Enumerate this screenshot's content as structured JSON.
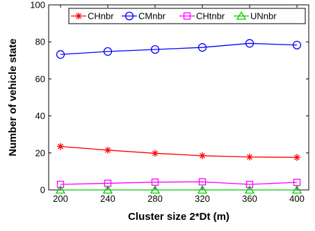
{
  "chart_data": {
    "type": "line",
    "title": "",
    "xlabel": "Cluster size 2*Dt (m)",
    "ylabel": "Number of vehicle state",
    "x": [
      200,
      240,
      280,
      320,
      360,
      400
    ],
    "xlim": [
      190,
      410
    ],
    "ylim": [
      0,
      100
    ],
    "xticks": [
      "200",
      "240",
      "280",
      "320",
      "360",
      "400"
    ],
    "yticks": [
      "0",
      "20",
      "40",
      "60",
      "80",
      "100"
    ],
    "grid": false,
    "legend_position": "top",
    "series": [
      {
        "name": "CHnbr",
        "color": "#ff0000",
        "marker": "asterisk",
        "values": [
          23.5,
          21.5,
          19.8,
          18.5,
          17.8,
          17.6
        ]
      },
      {
        "name": "CMnbr",
        "color": "#0000ff",
        "marker": "circle",
        "values": [
          73.2,
          74.8,
          75.9,
          77.0,
          79.2,
          78.3
        ]
      },
      {
        "name": "CHtnbr",
        "color": "#ff00ff",
        "marker": "square",
        "values": [
          3.0,
          3.6,
          4.2,
          4.4,
          3.0,
          4.1
        ]
      },
      {
        "name": "UNnbr",
        "color": "#00cc00",
        "marker": "triangle",
        "values": [
          0.0,
          0.0,
          0.0,
          0.0,
          0.0,
          0.0
        ]
      }
    ]
  }
}
